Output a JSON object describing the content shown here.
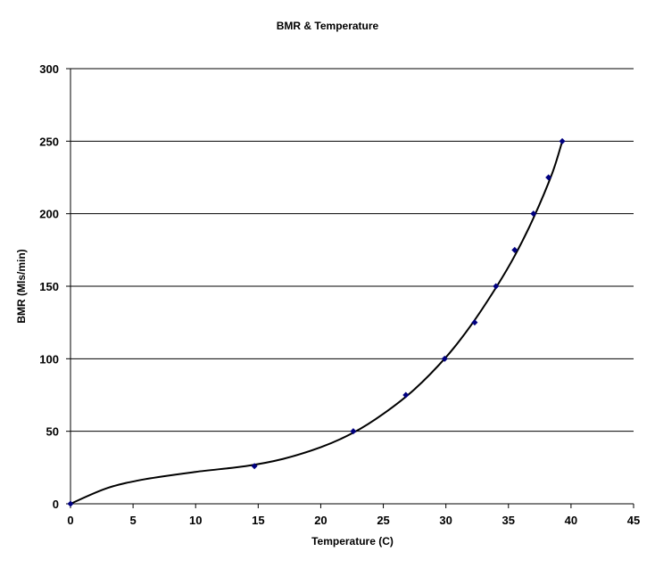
{
  "chart_data": {
    "type": "scatter",
    "title": "BMR & Temperature",
    "xlabel": "Temperature (C)",
    "ylabel": "BMR (Mls/min)",
    "xlim": [
      0,
      45
    ],
    "ylim": [
      0,
      300
    ],
    "x_ticks": [
      0,
      5,
      10,
      15,
      20,
      25,
      30,
      35,
      40,
      45
    ],
    "y_ticks": [
      0,
      50,
      100,
      150,
      200,
      250,
      300
    ],
    "x_tick_labels": [
      "0",
      "5",
      "10",
      "15",
      "20",
      "25",
      "30",
      "35",
      "40",
      "45"
    ],
    "y_tick_labels": [
      "0",
      "50",
      "100",
      "150",
      "200",
      "250",
      "300"
    ],
    "grid": "horizontal",
    "legend": "none",
    "marker_color": "#000080",
    "series": [
      {
        "x": [
          0,
          14.7,
          22.6,
          26.8,
          29.9,
          32.3,
          34.0,
          35.5,
          37.0,
          38.2,
          39.3
        ],
        "y": [
          0,
          26,
          50,
          75,
          100,
          125,
          150,
          175,
          200,
          225,
          250
        ]
      }
    ],
    "trendline": {
      "type": "polynomial",
      "x": [
        0,
        3,
        6,
        10,
        14,
        17,
        20,
        22.6,
        25,
        27.5,
        30,
        32,
        34,
        35.5,
        37,
        38.5,
        39.3
      ],
      "y": [
        0,
        11,
        17,
        22,
        26,
        31,
        39,
        49,
        62,
        79,
        101,
        123,
        149,
        171,
        197,
        228,
        250
      ]
    }
  }
}
